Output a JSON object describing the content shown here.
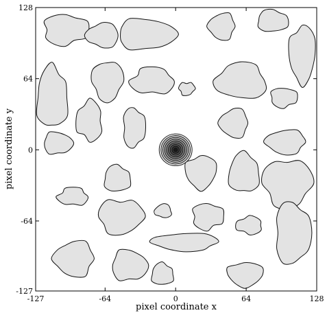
{
  "chart_data": {
    "type": "contour",
    "xlabel": "pixel coordinate x",
    "ylabel": "pixel coordinate y",
    "xlim": [
      -127,
      128
    ],
    "ylim": [
      -127,
      128
    ],
    "x_ticks": [
      -127,
      -64,
      0,
      64,
      128
    ],
    "y_ticks": [
      128,
      64,
      0,
      -64,
      -127
    ],
    "fill_color": "#e3e3e3",
    "line_color": "#111111",
    "grid": false,
    "central_peak": {
      "x": 0,
      "y": 0,
      "levels": 9
    },
    "regions": [
      {
        "cx": -100,
        "cy": 108,
        "rx": 20,
        "ry": 14
      },
      {
        "cx": -66,
        "cy": 103,
        "rx": 15,
        "ry": 11
      },
      {
        "cx": -27,
        "cy": 104,
        "rx": 26,
        "ry": 14
      },
      {
        "cx": 42,
        "cy": 111,
        "rx": 12,
        "ry": 12
      },
      {
        "cx": 88,
        "cy": 116,
        "rx": 14,
        "ry": 10
      },
      {
        "cx": 115,
        "cy": 86,
        "rx": 12,
        "ry": 26
      },
      {
        "cx": -112,
        "cy": 47,
        "rx": 14,
        "ry": 28
      },
      {
        "cx": -62,
        "cy": 62,
        "rx": 14,
        "ry": 18
      },
      {
        "cx": -21,
        "cy": 62,
        "rx": 20,
        "ry": 12
      },
      {
        "cx": 10,
        "cy": 55,
        "rx": 7,
        "ry": 6
      },
      {
        "cx": 60,
        "cy": 62,
        "rx": 24,
        "ry": 16
      },
      {
        "cx": 98,
        "cy": 47,
        "rx": 12,
        "ry": 9
      },
      {
        "cx": -78,
        "cy": 26,
        "rx": 12,
        "ry": 18
      },
      {
        "cx": -38,
        "cy": 20,
        "rx": 10,
        "ry": 18
      },
      {
        "cx": 53,
        "cy": 24,
        "rx": 13,
        "ry": 13
      },
      {
        "cx": -107,
        "cy": 6,
        "rx": 13,
        "ry": 10
      },
      {
        "cx": 100,
        "cy": 7,
        "rx": 18,
        "ry": 11
      },
      {
        "cx": -53,
        "cy": -26,
        "rx": 12,
        "ry": 12
      },
      {
        "cx": 23,
        "cy": -20,
        "rx": 14,
        "ry": 15
      },
      {
        "cx": 62,
        "cy": -21,
        "rx": 14,
        "ry": 18
      },
      {
        "cx": 101,
        "cy": -30,
        "rx": 22,
        "ry": 22
      },
      {
        "cx": -93,
        "cy": -42,
        "rx": 14,
        "ry": 8
      },
      {
        "cx": -50,
        "cy": -60,
        "rx": 20,
        "ry": 16
      },
      {
        "cx": -11,
        "cy": -55,
        "rx": 8,
        "ry": 6
      },
      {
        "cx": 29,
        "cy": -60,
        "rx": 14,
        "ry": 12
      },
      {
        "cx": 67,
        "cy": -68,
        "rx": 12,
        "ry": 8
      },
      {
        "cx": 106,
        "cy": -75,
        "rx": 16,
        "ry": 28
      },
      {
        "cx": -92,
        "cy": -98,
        "rx": 18,
        "ry": 16
      },
      {
        "cx": -42,
        "cy": -104,
        "rx": 16,
        "ry": 14
      },
      {
        "cx": 9,
        "cy": -83,
        "rx": 30,
        "ry": 8
      },
      {
        "cx": -12,
        "cy": -112,
        "rx": 10,
        "ry": 10
      },
      {
        "cx": 63,
        "cy": -112,
        "rx": 16,
        "ry": 11
      }
    ]
  }
}
